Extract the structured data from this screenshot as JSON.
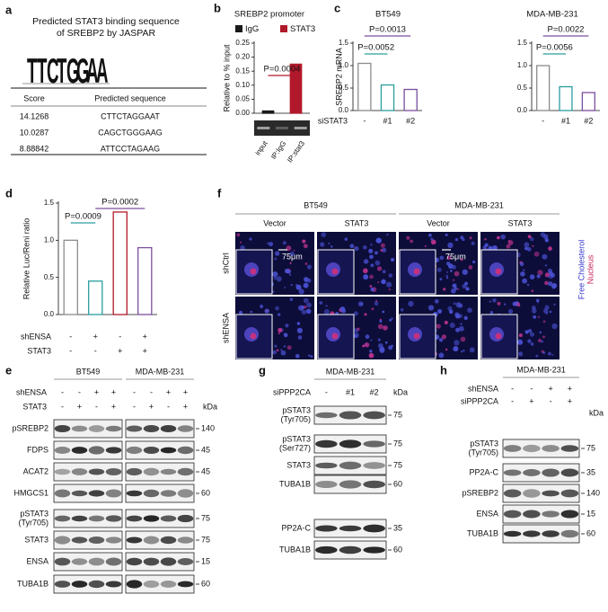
{
  "panel_a": {
    "label": "a",
    "title": [
      "Predicted STAT3 binding sequence",
      "of SREBP2 by JASPAR"
    ],
    "logo": [
      "T",
      "T",
      "C",
      "T",
      "G",
      "G",
      "A",
      "A"
    ],
    "table": {
      "header": [
        "Score",
        "Predicted sequence"
      ],
      "rows": [
        [
          "14.1268",
          "CTTCTAGGAAT"
        ],
        [
          "10.0287",
          "CAGCTGGGAAG"
        ],
        [
          "8.88842",
          "ATTCCTAGAAG"
        ]
      ]
    }
  },
  "chart_data": [
    {
      "type": "bar",
      "panel": "b",
      "title": "SREBP2 promoter",
      "ylabel": "Relative to % input",
      "series": [
        {
          "name": "IgG",
          "color": "#1a1a1a",
          "values": [
            0.008
          ]
        },
        {
          "name": "STAT3",
          "color": "#b2182b",
          "values": [
            0.175
          ]
        }
      ],
      "ylim": [
        0,
        0.25
      ],
      "yticks": [
        {
          "value": 0,
          "label": "0.00"
        },
        0.05,
        {
          "value": 0.1,
          "label": "0.10"
        },
        0.15,
        {
          "value": 0.2,
          "label": "0.20"
        },
        0.25
      ],
      "annotations": [
        "P=0.0004"
      ],
      "gel_lanes": [
        "input",
        "IP:IgG",
        "IP:stat3"
      ]
    },
    {
      "type": "bar",
      "panel": "c",
      "title": "BT549",
      "ylabel": "SREBP2 mRNA",
      "xlabel": "siSTAT3",
      "categories": [
        "-",
        "#1",
        "#2"
      ],
      "values": [
        1.05,
        0.57,
        0.47
      ],
      "colors": [
        "#8c8c8c",
        "#2a9d9f",
        "#7b4f9e"
      ],
      "ylim": [
        0,
        1.5
      ],
      "yticks": [
        {
          "value": 0,
          "label": "0.0"
        },
        0.5,
        {
          "value": 1,
          "label": "1.0"
        },
        1.5
      ],
      "annotations": [
        "P=0.0013",
        "P=0.0052"
      ]
    },
    {
      "type": "bar",
      "title": "MDA-MB-231",
      "categories": [
        "-",
        "#1",
        "#2"
      ],
      "values": [
        1.0,
        0.53,
        0.4
      ],
      "colors": [
        "#8c8c8c",
        "#2a9d9f",
        "#7b4f9e"
      ],
      "ylim": [
        0,
        1.5
      ],
      "yticks": [
        {
          "value": 0,
          "label": "0.0"
        },
        0.5,
        {
          "value": 1,
          "label": "1.0"
        },
        1.5
      ],
      "annotations": [
        "P=0.0022",
        "P=0.0056"
      ]
    },
    {
      "type": "bar",
      "panel": "d",
      "ylabel": "Relative Luc/Reni ratio",
      "values": [
        1.0,
        0.45,
        1.38,
        0.9
      ],
      "colors": [
        "#8c8c8c",
        "#2a9d9f",
        "#b2182b",
        "#7b4f9e"
      ],
      "conditions": [
        {
          "name": "shENSA",
          "values": [
            "-",
            "+",
            "-",
            "+"
          ]
        },
        {
          "name": "STAT3",
          "values": [
            "-",
            "-",
            "+",
            "+"
          ]
        }
      ],
      "ylim": [
        0,
        1.5
      ],
      "yticks": [
        {
          "value": 0,
          "label": "0.0"
        },
        0.5,
        {
          "value": 1,
          "label": "1.0"
        },
        1.5
      ],
      "annotations": [
        "P=0.0009",
        "P=0.0002"
      ]
    }
  ],
  "panel_f": {
    "label": "f",
    "groups": [
      "BT549",
      "MDA-MB-231"
    ],
    "columns": [
      "Vector",
      "STAT3",
      "Vector",
      "STAT3"
    ],
    "rows": [
      "shCtrl",
      "shENSA"
    ],
    "scale": "75μm",
    "stains": [
      "Free Cholesterol",
      "Nucleus"
    ]
  },
  "panel_e": {
    "label": "e",
    "groups": [
      "BT549",
      "MDA-MB-231"
    ],
    "conditions": [
      {
        "name": "shENSA",
        "values": [
          "-",
          "-",
          "+",
          "+",
          "-",
          "-",
          "+",
          "+"
        ]
      },
      {
        "name": "STAT3",
        "values": [
          "-",
          "+",
          "-",
          "+",
          "-",
          "+",
          "-",
          "+"
        ]
      }
    ],
    "unit": "kDa",
    "blots": [
      {
        "name": "pSREBP2",
        "kda": 140
      },
      {
        "name": "FDPS",
        "kda": 45
      },
      {
        "name": "ACAT2",
        "kda": 45
      },
      {
        "name": "HMGCS1",
        "kda": 60
      },
      {
        "name": [
          "pSTAT3",
          "(Tyr705)"
        ],
        "kda": 75
      },
      {
        "name": "STAT3",
        "kda": 75
      },
      {
        "name": "ENSA",
        "kda": 15
      },
      {
        "name": "TUBA1B",
        "kda": 60
      }
    ]
  },
  "panel_g": {
    "label": "g",
    "groups": [
      "MDA-MB-231"
    ],
    "conditions": [
      {
        "name": "siPPP2CA",
        "values": [
          "-",
          "#1",
          "#2"
        ]
      }
    ],
    "unit": "kDa",
    "blots": [
      {
        "name": [
          "pSTAT3",
          "(Tyr705)"
        ],
        "kda": 75
      },
      {
        "name": [
          "pSTAT3",
          "(Ser727)"
        ],
        "kda": 75
      },
      {
        "name": "STAT3",
        "kda": 75
      },
      {
        "name": "TUBA1B",
        "kda": 60
      },
      {
        "name": "PP2A-C",
        "kda": 35
      },
      {
        "name": "TUBA1B",
        "kda": 60
      }
    ]
  },
  "panel_h": {
    "label": "h",
    "groups": [
      "MDA-MB-231"
    ],
    "conditions": [
      {
        "name": "shENSA",
        "values": [
          "-",
          "-",
          "+",
          "+"
        ]
      },
      {
        "name": "siPPP2CA",
        "values": [
          "-",
          "+",
          "-",
          "+"
        ]
      }
    ],
    "unit": "kDa",
    "blots": [
      {
        "name": [
          "pSTAT3",
          "(Tyr705)"
        ],
        "kda": 75
      },
      {
        "name": "PP2A-C",
        "kda": 35
      },
      {
        "name": "pSREBP2",
        "kda": 140
      },
      {
        "name": "ENSA",
        "kda": 15
      },
      {
        "name": "TUBA1B",
        "kda": 60
      }
    ]
  }
}
